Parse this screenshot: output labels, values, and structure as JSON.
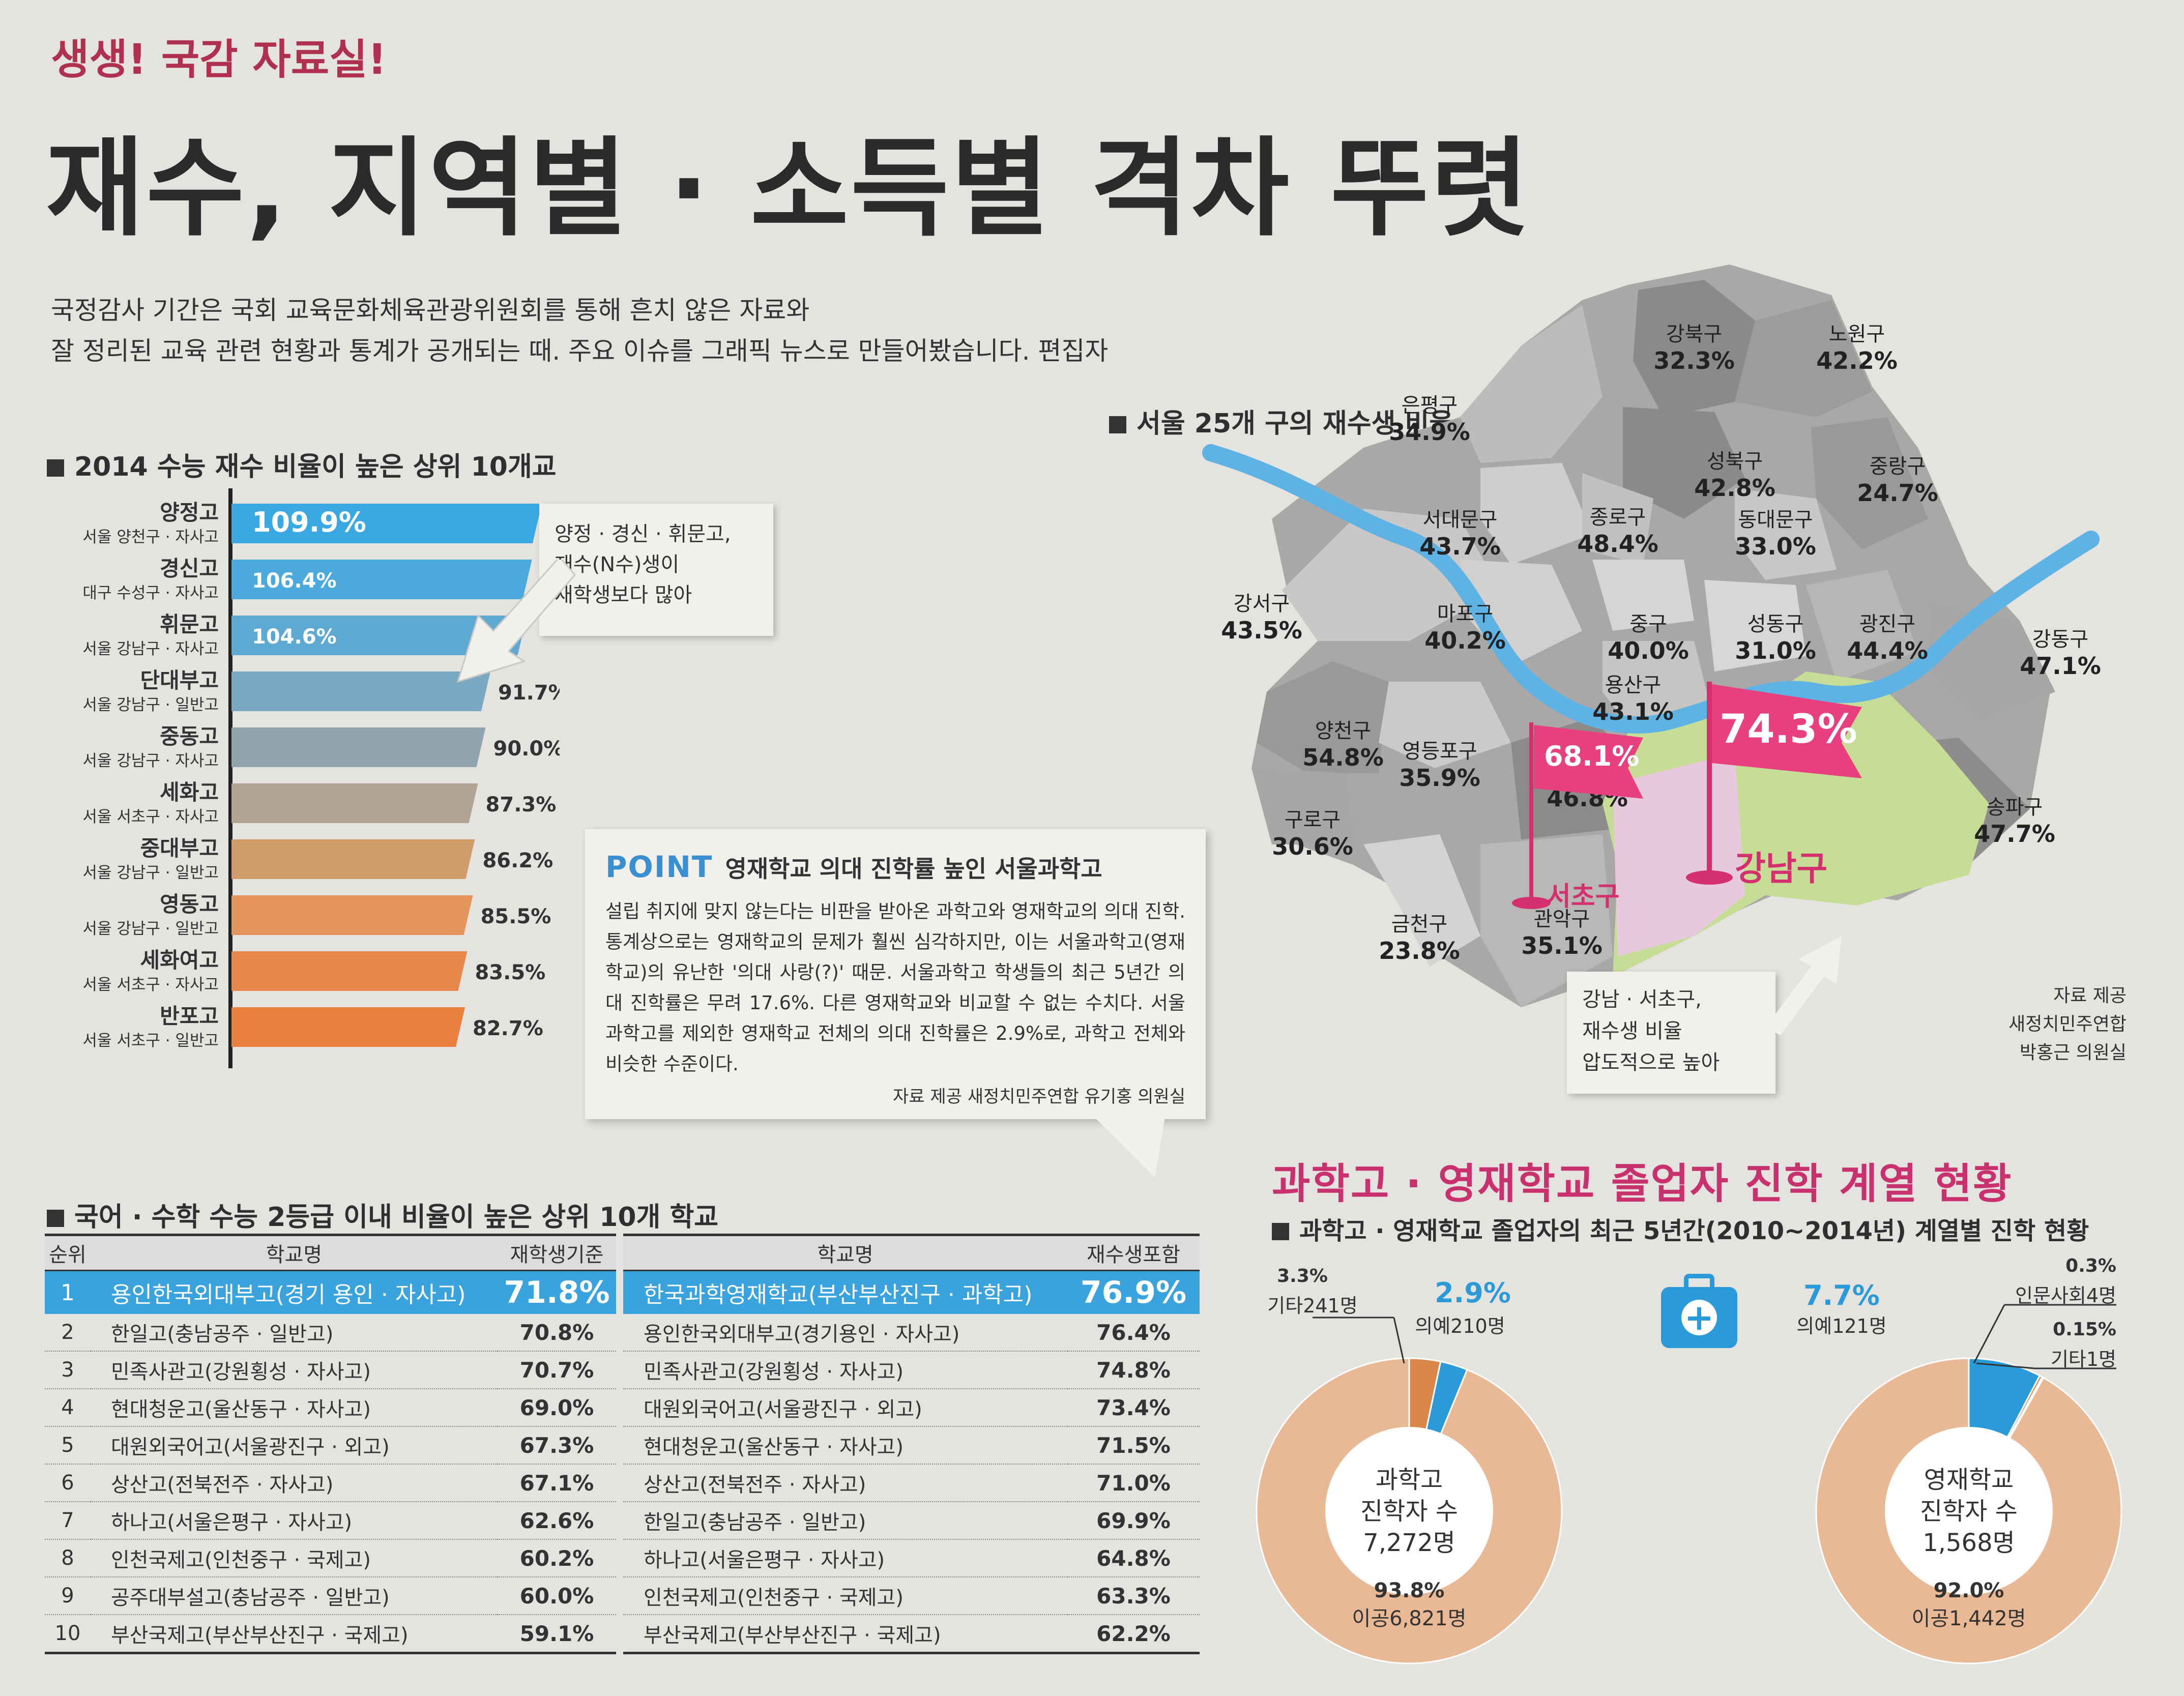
{
  "header": {
    "kicker": "생생! 국감 자료실!",
    "headline": "재수, 지역별 · 소득별 격차 뚜렷",
    "intro_1": "국정감사 기간은 국회 교육문화체육관광위원회를 통해 흔치 않은 자료와",
    "intro_2": "잘 정리된 교육 관련 현황과 통계가 공개되는 때. 주요 이슈를 그래픽 뉴스로 만들어봤습니다. 편집자"
  },
  "sections": {
    "bar_title": "2014 수능 재수 비율이 높은 상위 10개교",
    "map_title": "서울 25개 구의 재수생 비율",
    "table_title": "국어 · 수학 수능 2등급 이내 비율이 높은 상위 10개 학교"
  },
  "callout_bar": [
    "양정 · 경신 · 휘문고,",
    "재수(N수)생이",
    "재학생보다 많아"
  ],
  "point": {
    "label": "POINT",
    "heading": "영재학교 의대 진학률 높인 서울과학고",
    "body": "설립 취지에 맞지 않는다는 비판을 받아온 과학고와 영재학교의 의대 진학. 통계상으로는 영재학교의 문제가 훨씬 심각하지만, 이는 서울과학고(영재학교)의 유난한 '의대 사랑(?)' 때문. 서울과학고 학생들의 최근 5년간 의대 진학률은 무려 17.6%. 다른 영재학교와 비교할 수 없는 수치다. 서울과학고를 제외한 영재학교 전체의 의대 진학률은 2.9%로, 과학고 전체와 비슷한 수준이다.",
    "source": "자료 제공 새정치민주연합 유기홍 의원실"
  },
  "map": {
    "callout": [
      "강남 · 서초구,",
      "재수생 비율",
      "압도적으로 높아"
    ],
    "source": [
      "자료 제공",
      "새정치민주연합",
      "박홍근 의원실"
    ],
    "flag_big": "74.3%",
    "flag_big_name": "강남구",
    "flag_small": "68.1%",
    "flag_small_name": "서초구",
    "districts": [
      {
        "name": "강북구",
        "value": "32.3%"
      },
      {
        "name": "노원구",
        "value": "42.2%"
      },
      {
        "name": "은평구",
        "value": "34.9%"
      },
      {
        "name": "성북구",
        "value": "42.8%"
      },
      {
        "name": "중랑구",
        "value": "24.7%"
      },
      {
        "name": "서대문구",
        "value": "43.7%"
      },
      {
        "name": "종로구",
        "value": "48.4%"
      },
      {
        "name": "동대문구",
        "value": "33.0%"
      },
      {
        "name": "강서구",
        "value": "43.5%"
      },
      {
        "name": "마포구",
        "value": "40.2%"
      },
      {
        "name": "중구",
        "value": "40.0%"
      },
      {
        "name": "성동구",
        "value": "31.0%"
      },
      {
        "name": "광진구",
        "value": "44.4%"
      },
      {
        "name": "강동구",
        "value": "47.1%"
      },
      {
        "name": "용산구",
        "value": "43.1%"
      },
      {
        "name": "양천구",
        "value": "54.8%"
      },
      {
        "name": "영등포구",
        "value": "35.9%"
      },
      {
        "name": "동작구",
        "value": "46.8%"
      },
      {
        "name": "구로구",
        "value": "30.6%"
      },
      {
        "name": "송파구",
        "value": "47.7%"
      },
      {
        "name": "금천구",
        "value": "23.8%"
      },
      {
        "name": "관악구",
        "value": "35.1%"
      }
    ]
  },
  "table": {
    "headers": [
      "순위",
      "학교명",
      "재학생기준",
      "학교명",
      "재수생포함"
    ],
    "rows": [
      [
        "1",
        "용인한국외대부고(경기 용인 · 자사고)",
        "71.8%",
        "한국과학영재학교(부산부산진구 · 과학고)",
        "76.9%"
      ],
      [
        "2",
        "한일고(충남공주 · 일반고)",
        "70.8%",
        "용인한국외대부고(경기용인 · 자사고)",
        "76.4%"
      ],
      [
        "3",
        "민족사관고(강원횡성 · 자사고)",
        "70.7%",
        "민족사관고(강원횡성 · 자사고)",
        "74.8%"
      ],
      [
        "4",
        "현대청운고(울산동구 · 자사고)",
        "69.0%",
        "대원외국어고(서울광진구 · 외고)",
        "73.4%"
      ],
      [
        "5",
        "대원외국어고(서울광진구 · 외고)",
        "67.3%",
        "현대청운고(울산동구 · 자사고)",
        "71.5%"
      ],
      [
        "6",
        "상산고(전북전주 · 자사고)",
        "67.1%",
        "상산고(전북전주 · 자사고)",
        "71.0%"
      ],
      [
        "7",
        "하나고(서울은평구 · 자사고)",
        "62.6%",
        "한일고(충남공주 · 일반고)",
        "69.9%"
      ],
      [
        "8",
        "인천국제고(인천중구 · 국제고)",
        "60.2%",
        "하나고(서울은평구 · 자사고)",
        "64.8%"
      ],
      [
        "9",
        "공주대부설고(충남공주 · 일반고)",
        "60.0%",
        "인천국제고(인천중구 · 국제고)",
        "63.3%"
      ],
      [
        "10",
        "부산국제고(부산부산진구 · 국제고)",
        "59.1%",
        "부산국제고(부산부산진구 · 국제고)",
        "62.2%"
      ]
    ]
  },
  "science": {
    "title": "과학고 · 영재학교 졸업자 진학 계열 현황",
    "subtitle": "과학고 · 영재학교 졸업자의 최근 5년간(2010~2014년) 계열별 진학 현황"
  },
  "chart_data": [
    {
      "type": "bar",
      "title": "2014 수능 재수 비율이 높은 상위 10개교",
      "categories": [
        "양정고",
        "경신고",
        "휘문고",
        "단대부고",
        "중동고",
        "세화고",
        "중대부고",
        "영동고",
        "세화여고",
        "반포고"
      ],
      "sublabels": [
        "서울 양천구 · 자사고",
        "대구 수성구 · 자사고",
        "서울 강남구 · 자사고",
        "서울 강남구 · 일반고",
        "서울 강남구 · 자사고",
        "서울 서초구 · 자사고",
        "서울 강남구 · 일반고",
        "서울 강남구 · 일반고",
        "서울 서초구 · 자사고",
        "서울 서초구 · 일반고"
      ],
      "values": [
        109.9,
        106.4,
        104.6,
        91.7,
        90.0,
        87.3,
        86.2,
        85.5,
        83.5,
        82.7
      ],
      "value_labels": [
        "109.9%",
        "106.4%",
        "104.6%",
        "91.7%",
        "90.0%",
        "87.3%",
        "86.2%",
        "85.5%",
        "83.5%",
        "82.7%"
      ],
      "colors": [
        "#3aa8e2",
        "#4ba9dc",
        "#5da9d2",
        "#7aa8c0",
        "#90a4ae",
        "#b0a394",
        "#d19c6c",
        "#e4955a",
        "#e8874a",
        "#e98040"
      ]
    },
    {
      "type": "pie",
      "center_label": [
        "과학고",
        "진학자 수",
        "7,272명"
      ],
      "slices": [
        {
          "label": "이공",
          "count": "6,821명",
          "value": 93.8,
          "color": "#e9b995"
        },
        {
          "label": "기타",
          "count": "241명",
          "value": 3.3,
          "color": "#d9864a"
        },
        {
          "label": "의예",
          "count": "210명",
          "value": 2.9,
          "color": "#2a9ad8"
        }
      ],
      "labels": [
        "93.8%",
        "이공6,821명",
        "3.3%",
        "기타241명",
        "2.9%",
        "의예210명"
      ]
    },
    {
      "type": "pie",
      "center_label": [
        "영재학교",
        "진학자 수",
        "1,568명"
      ],
      "slices": [
        {
          "label": "이공",
          "count": "1,442명",
          "value": 92.0,
          "color": "#e9b995"
        },
        {
          "label": "의예",
          "count": "121명",
          "value": 7.7,
          "color": "#2a9ad8"
        },
        {
          "label": "인문사회",
          "count": "4명",
          "value": 0.3,
          "color": "#d9864a"
        },
        {
          "label": "기타",
          "count": "1명",
          "value": 0.15,
          "color": "#8a5a3a"
        }
      ],
      "labels": [
        "92.0%",
        "이공1,442명",
        "7.7%",
        "의예121명",
        "0.3%",
        "인문사회4명",
        "0.15%",
        "기타1명"
      ]
    }
  ]
}
